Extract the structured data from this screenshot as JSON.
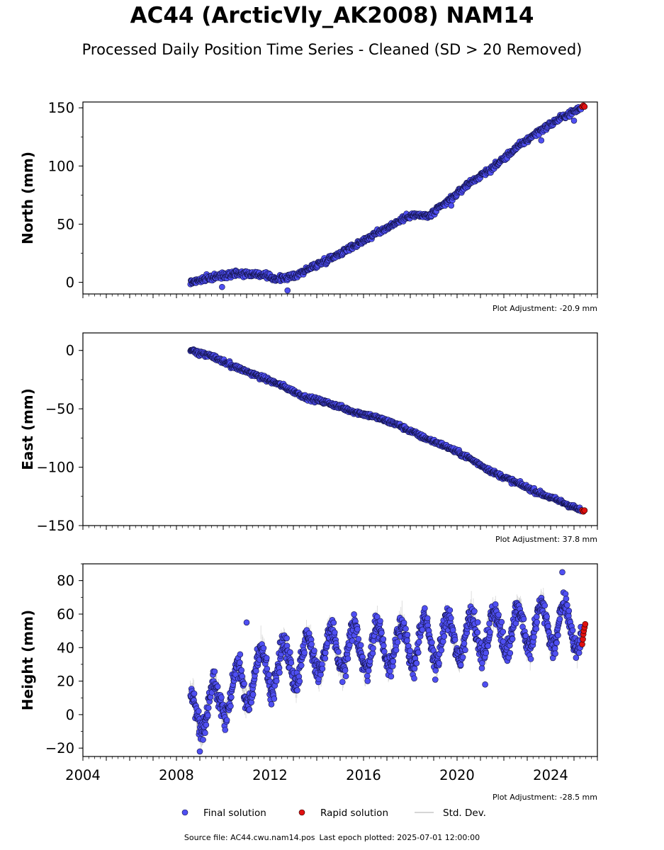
{
  "title": "AC44 (ArcticVly_AK2008) NAM14",
  "subtitle": "Processed Daily Position Time Series - Cleaned (SD > 20 Removed)",
  "footer": {
    "source": "Source file: AC44.cwu.nam14.pos",
    "last_epoch": "Last epoch plotted: 2025-07-01 12:00:00"
  },
  "legend": {
    "final": "Final solution",
    "rapid": "Rapid solution",
    "std": "Std. Dev."
  },
  "colors": {
    "final_fill": "#4f4ff2",
    "final_edge": "#111144",
    "rapid_fill": "#e01010",
    "std_line": "#9a9a9a"
  },
  "chart_data": [
    {
      "type": "scatter",
      "ylabel": "North (mm)",
      "adjustment": "Plot Adjustment: -20.9 mm",
      "xlim": [
        2004,
        2026
      ],
      "ylim": [
        -10,
        155
      ],
      "yticks": [
        0,
        50,
        100,
        150
      ],
      "ytick_labels": [
        "0",
        "50",
        "100",
        "150"
      ],
      "grid": false,
      "series": [
        {
          "name": "Final solution",
          "trend": [
            [
              2008.6,
              0
            ],
            [
              2009.5,
              4
            ],
            [
              2010.5,
              8
            ],
            [
              2011.5,
              7
            ],
            [
              2012.3,
              3
            ],
            [
              2013.0,
              5
            ],
            [
              2014.0,
              15
            ],
            [
              2015.0,
              25
            ],
            [
              2016.0,
              36
            ],
            [
              2017.0,
              47
            ],
            [
              2018.0,
              58
            ],
            [
              2018.8,
              57
            ],
            [
              2019.5,
              68
            ],
            [
              2020.5,
              85
            ],
            [
              2021.5,
              98
            ],
            [
              2022.5,
              115
            ],
            [
              2023.5,
              130
            ],
            [
              2024.5,
              142
            ],
            [
              2025.2,
              149
            ]
          ],
          "outliers": [
            [
              2009.95,
              -4
            ],
            [
              2012.75,
              -7
            ],
            [
              2019.75,
              66
            ],
            [
              2023.6,
              122
            ],
            [
              2025.0,
              139
            ]
          ]
        },
        {
          "name": "Rapid solution",
          "x": [
            2025.35,
            2025.4,
            2025.45
          ],
          "y": [
            151,
            152,
            151
          ]
        }
      ]
    },
    {
      "type": "scatter",
      "ylabel": "East (mm)",
      "adjustment": "Plot Adjustment: 37.8 mm",
      "xlim": [
        2004,
        2026
      ],
      "ylim": [
        -150,
        15
      ],
      "yticks": [
        0,
        -50,
        -100,
        -150
      ],
      "ytick_labels": [
        "0",
        "−50",
        "−100",
        "−150"
      ],
      "grid": false,
      "series": [
        {
          "name": "Final solution",
          "trend": [
            [
              2008.6,
              0
            ],
            [
              2009.5,
              -5
            ],
            [
              2010.5,
              -14
            ],
            [
              2011.5,
              -22
            ],
            [
              2012.5,
              -30
            ],
            [
              2013.5,
              -40
            ],
            [
              2014.5,
              -45
            ],
            [
              2015.5,
              -52
            ],
            [
              2016.5,
              -57
            ],
            [
              2017.5,
              -64
            ],
            [
              2018.5,
              -74
            ],
            [
              2019.5,
              -82
            ],
            [
              2020.5,
              -92
            ],
            [
              2021.5,
              -104
            ],
            [
              2022.5,
              -113
            ],
            [
              2023.5,
              -122
            ],
            [
              2024.5,
              -130
            ],
            [
              2025.3,
              -137
            ]
          ],
          "outliers": []
        },
        {
          "name": "Rapid solution",
          "x": [
            2025.35,
            2025.4,
            2025.45
          ],
          "y": [
            -137,
            -138,
            -137
          ]
        }
      ]
    },
    {
      "type": "scatter",
      "ylabel": "Height (mm)",
      "adjustment": "Plot Adjustment: -28.5 mm",
      "xlim": [
        2004,
        2026
      ],
      "ylim": [
        -25,
        90
      ],
      "yticks": [
        -20,
        0,
        20,
        40,
        60,
        80
      ],
      "ytick_labels": [
        "−20",
        "0",
        "20",
        "40",
        "60",
        "80"
      ],
      "xticks": [
        2004,
        2008,
        2012,
        2016,
        2020,
        2024
      ],
      "xtick_labels": [
        "2004",
        "2008",
        "2012",
        "2016",
        "2020",
        "2024"
      ],
      "grid": false,
      "series": [
        {
          "name": "Final solution",
          "trend": [
            [
              2008.6,
              0
            ],
            [
              2010.0,
              10
            ],
            [
              2011.5,
              25
            ],
            [
              2013.0,
              32
            ],
            [
              2014.5,
              38
            ],
            [
              2016.0,
              40
            ],
            [
              2018.0,
              42
            ],
            [
              2020.0,
              46
            ],
            [
              2022.0,
              50
            ],
            [
              2024.0,
              54
            ],
            [
              2025.3,
              52
            ]
          ],
          "seasonal_amplitude": 13,
          "outliers": [
            [
              2009.0,
              -22
            ],
            [
              2011.0,
              55
            ],
            [
              2021.2,
              18
            ],
            [
              2024.5,
              85
            ]
          ]
        },
        {
          "name": "Rapid solution",
          "x": [
            2025.35,
            2025.38,
            2025.4,
            2025.42,
            2025.45,
            2025.48
          ],
          "y": [
            42,
            45,
            48,
            50,
            52,
            54
          ]
        }
      ]
    }
  ]
}
